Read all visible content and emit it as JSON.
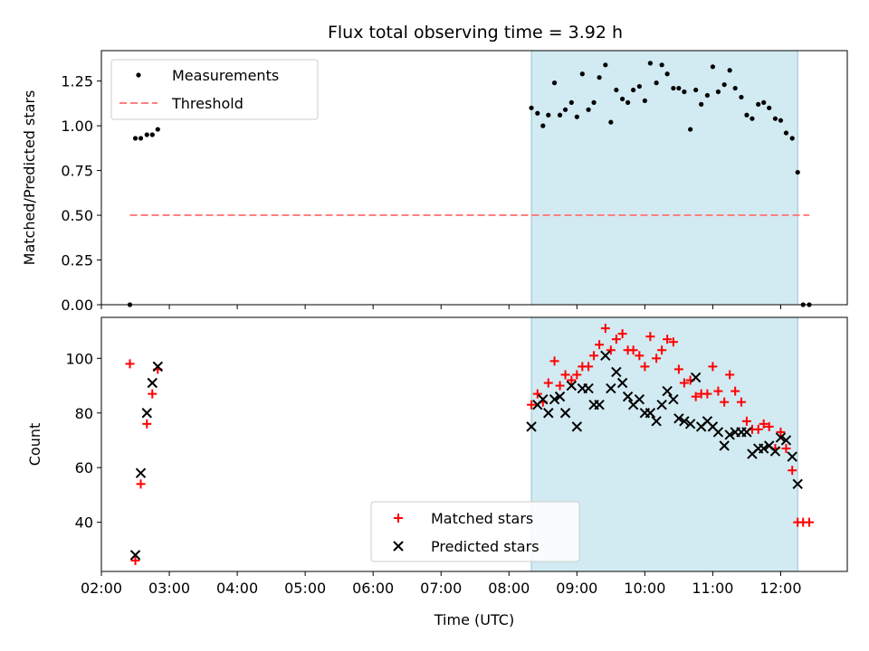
{
  "figure": {
    "title": "Flux total observing time = 3.92 h"
  },
  "colors": {
    "observing_span": "#add8e6",
    "measurements": "#000000",
    "threshold": "#ff7f7f",
    "matched": "#ff0000",
    "predicted": "#000000"
  },
  "chart_data": [
    {
      "type": "scatter",
      "title": "Flux total observing time = 3.92 h",
      "xlabel": "",
      "ylabel": "Matched/Predicted stars",
      "xlim": [
        2.0,
        12.98
      ],
      "ylim": [
        0.0,
        1.42
      ],
      "x_ticks": [
        2,
        3,
        4,
        5,
        6,
        7,
        8,
        9,
        10,
        11,
        12
      ],
      "y_ticks": [
        0.0,
        0.25,
        0.5,
        0.75,
        1.0,
        1.25
      ],
      "y_tick_labels": [
        "0.00",
        "0.25",
        "0.50",
        "0.75",
        "1.00",
        "1.25"
      ],
      "shaded_span": [
        8.33,
        12.25
      ],
      "legend": {
        "position": "top-left",
        "entries": [
          "Measurements",
          "Threshold"
        ]
      },
      "threshold": {
        "name": "Threshold",
        "y": 0.5,
        "x": [
          2.42,
          12.42
        ]
      },
      "series": [
        {
          "name": "Measurements",
          "x": [
            2.42,
            2.5,
            2.58,
            2.67,
            2.75,
            2.83,
            8.33,
            8.42,
            8.5,
            8.58,
            8.67,
            8.75,
            8.83,
            8.92,
            9.0,
            9.08,
            9.17,
            9.25,
            9.33,
            9.42,
            9.5,
            9.58,
            9.67,
            9.75,
            9.83,
            9.92,
            10.0,
            10.08,
            10.17,
            10.25,
            10.33,
            10.42,
            10.5,
            10.58,
            10.67,
            10.75,
            10.83,
            10.92,
            11.0,
            11.08,
            11.17,
            11.25,
            11.33,
            11.42,
            11.5,
            11.58,
            11.67,
            11.75,
            11.83,
            11.92,
            12.0,
            12.08,
            12.17,
            12.25,
            12.33,
            12.42
          ],
          "y": [
            0.0,
            0.93,
            0.93,
            0.95,
            0.95,
            0.98,
            1.1,
            1.07,
            1.0,
            1.06,
            1.24,
            1.06,
            1.09,
            1.13,
            1.05,
            1.29,
            1.09,
            1.13,
            1.27,
            1.34,
            1.02,
            1.2,
            1.15,
            1.13,
            1.2,
            1.22,
            1.14,
            1.35,
            1.24,
            1.34,
            1.29,
            1.21,
            1.21,
            1.19,
            0.98,
            1.2,
            1.12,
            1.17,
            1.33,
            1.19,
            1.23,
            1.31,
            1.21,
            1.16,
            1.06,
            1.04,
            1.12,
            1.13,
            1.1,
            1.04,
            1.03,
            0.96,
            0.93,
            0.74,
            0.0,
            0.0
          ]
        }
      ]
    },
    {
      "type": "scatter",
      "xlabel": "Time (UTC)",
      "ylabel": "Count",
      "xlim": [
        2.0,
        12.98
      ],
      "ylim": [
        22,
        115
      ],
      "x_ticks": [
        2,
        3,
        4,
        5,
        6,
        7,
        8,
        9,
        10,
        11,
        12
      ],
      "x_tick_labels": [
        "02:00",
        "03:00",
        "04:00",
        "05:00",
        "06:00",
        "07:00",
        "08:00",
        "09:00",
        "10:00",
        "11:00",
        "12:00"
      ],
      "y_ticks": [
        40,
        60,
        80,
        100
      ],
      "y_tick_labels": [
        "40",
        "60",
        "80",
        "100"
      ],
      "shaded_span": [
        8.33,
        12.25
      ],
      "legend": {
        "position": "lower-center",
        "entries": [
          "Matched stars",
          "Predicted stars"
        ]
      },
      "series": [
        {
          "name": "Matched stars",
          "marker": "+",
          "x": [
            2.42,
            2.5,
            2.58,
            2.67,
            2.75,
            2.83,
            8.33,
            8.42,
            8.5,
            8.58,
            8.67,
            8.75,
            8.83,
            8.92,
            9.0,
            9.08,
            9.17,
            9.25,
            9.33,
            9.42,
            9.5,
            9.58,
            9.67,
            9.75,
            9.83,
            9.92,
            10.0,
            10.08,
            10.17,
            10.25,
            10.33,
            10.42,
            10.5,
            10.58,
            10.67,
            10.75,
            10.83,
            10.92,
            11.0,
            11.08,
            11.17,
            11.25,
            11.33,
            11.42,
            11.5,
            11.58,
            11.67,
            11.75,
            11.83,
            11.92,
            12.0,
            12.08,
            12.17,
            12.25,
            12.33,
            12.42
          ],
          "y": [
            98,
            26,
            54,
            76,
            87,
            96,
            83,
            87,
            84,
            91,
            99,
            90,
            94,
            92,
            94,
            97,
            97,
            101,
            105,
            111,
            103,
            107,
            109,
            103,
            103,
            101,
            97,
            108,
            100,
            103,
            107,
            106,
            96,
            91,
            92,
            86,
            87,
            87,
            97,
            88,
            84,
            94,
            88,
            84,
            77,
            74,
            74,
            76,
            75,
            67,
            73,
            67,
            59,
            40,
            40,
            40
          ]
        },
        {
          "name": "Predicted stars",
          "marker": "x",
          "x": [
            2.5,
            2.58,
            2.67,
            2.75,
            2.83,
            8.33,
            8.42,
            8.5,
            8.58,
            8.67,
            8.75,
            8.83,
            8.92,
            9.0,
            9.08,
            9.17,
            9.25,
            9.33,
            9.42,
            9.5,
            9.58,
            9.67,
            9.75,
            9.83,
            9.92,
            10.0,
            10.08,
            10.17,
            10.25,
            10.33,
            10.42,
            10.5,
            10.58,
            10.67,
            10.75,
            10.83,
            10.92,
            11.0,
            11.08,
            11.17,
            11.25,
            11.33,
            11.42,
            11.5,
            11.58,
            11.67,
            11.75,
            11.83,
            11.92,
            12.0,
            12.08,
            12.17,
            12.25
          ],
          "y": [
            28,
            58,
            80,
            91,
            97,
            75,
            83,
            85,
            80,
            85,
            86,
            80,
            90,
            75,
            89,
            89,
            83,
            83,
            101,
            89,
            95,
            91,
            86,
            83,
            85,
            80,
            80,
            77,
            83,
            88,
            85,
            78,
            77,
            76,
            93,
            75,
            77,
            75,
            73,
            68,
            72,
            73,
            73,
            73,
            65,
            67,
            67,
            68,
            66,
            71,
            70,
            64,
            54
          ]
        }
      ]
    }
  ]
}
